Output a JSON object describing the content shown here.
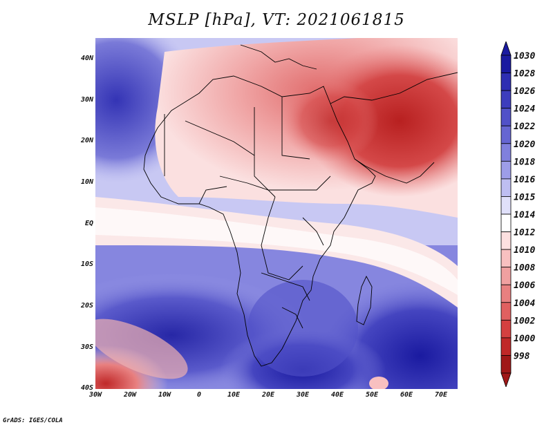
{
  "title": "MSLP [hPa], VT: 2021061815",
  "credit": "GrADS: IGES/COLA",
  "map": {
    "lat_labels": [
      "40N",
      "30N",
      "20N",
      "10N",
      "EQ",
      "10S",
      "20S",
      "30S",
      "40S"
    ],
    "lat_values": [
      40,
      30,
      20,
      10,
      0,
      -10,
      -20,
      -30,
      -40
    ],
    "lon_labels": [
      "30W",
      "20W",
      "10W",
      "0",
      "10E",
      "20E",
      "30E",
      "40E",
      "50E",
      "60E",
      "70E"
    ],
    "lon_values": [
      -30,
      -20,
      -10,
      0,
      10,
      20,
      30,
      40,
      50,
      60,
      70
    ],
    "extent": {
      "lon_min": -30,
      "lon_max": 75,
      "lat_min": -40,
      "lat_max": 45
    }
  },
  "colorbar": {
    "levels": [
      "1030",
      "1028",
      "1026",
      "1024",
      "1022",
      "1020",
      "1018",
      "1016",
      "1015",
      "1014",
      "1012",
      "1010",
      "1008",
      "1006",
      "1004",
      "1002",
      "1000",
      "998"
    ],
    "colors": [
      "#1a1aa0",
      "#2e2eb2",
      "#3d3dbd",
      "#5151c8",
      "#6666d2",
      "#8080dd",
      "#9d9de8",
      "#bebef2",
      "#e0e0fa",
      "#ffffff",
      "#fde0e0",
      "#f8c0c0",
      "#f0a0a0",
      "#e88080",
      "#e06060",
      "#d44040",
      "#c02828",
      "#a01818"
    ]
  }
}
